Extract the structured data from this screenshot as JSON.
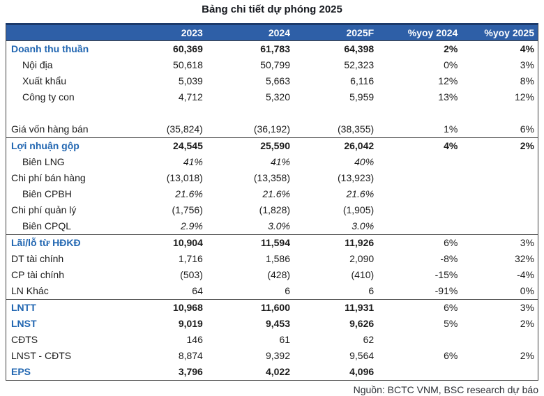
{
  "title": "Bảng chi tiết dự phóng 2025",
  "source": "Nguồn: BCTC VNM, BSC research dự báo",
  "colors": {
    "header_bg": "#2e5fa7",
    "header_top_border": "#1c3a6b",
    "accent_text": "#2166b1",
    "divider": "#4f4f4f",
    "header_text": "#ffffff"
  },
  "table": {
    "columns": [
      "",
      "2023",
      "2024",
      "2025F",
      "%yoy 2024",
      "%yoy 2025"
    ],
    "rows": [
      {
        "label": "Doanh thu thuần",
        "values": [
          "60,369",
          "61,783",
          "64,398",
          "2%",
          "4%"
        ],
        "style": "accent",
        "pct_bold": true
      },
      {
        "label": "Nội địa",
        "values": [
          "50,618",
          "50,799",
          "52,323",
          "0%",
          "3%"
        ],
        "style": "indent"
      },
      {
        "label": "Xuất khẩu",
        "values": [
          "5,039",
          "5,663",
          "6,116",
          "12%",
          "8%"
        ],
        "style": "indent"
      },
      {
        "label": "Công ty con",
        "values": [
          "4,712",
          "5,320",
          "5,959",
          "13%",
          "12%"
        ],
        "style": "indent"
      },
      {
        "label": "",
        "values": [
          "",
          "",
          "",
          "",
          ""
        ],
        "style": "empty"
      },
      {
        "label": "Giá vốn hàng bán",
        "values": [
          "(35,824)",
          "(36,192)",
          "(38,355)",
          "1%",
          "6%"
        ],
        "style": "normal"
      },
      {
        "label": "Lợi nhuận gộp",
        "values": [
          "24,545",
          "25,590",
          "26,042",
          "4%",
          "2%"
        ],
        "style": "accent",
        "pct_bold": true,
        "divider_top": true
      },
      {
        "label": "Biên LNG",
        "values": [
          "41%",
          "41%",
          "40%",
          "",
          ""
        ],
        "style": "indent-italic"
      },
      {
        "label": "Chi phí bán hàng",
        "values": [
          "(13,018)",
          "(13,358)",
          "(13,923)",
          "",
          ""
        ],
        "style": "normal"
      },
      {
        "label": "Biên CPBH",
        "values": [
          "21.6%",
          "21.6%",
          "21.6%",
          "",
          ""
        ],
        "style": "indent-italic"
      },
      {
        "label": "Chi phí quản lý",
        "values": [
          "(1,756)",
          "(1,828)",
          "(1,905)",
          "",
          ""
        ],
        "style": "normal"
      },
      {
        "label": "Biên CPQL",
        "values": [
          "2.9%",
          "3.0%",
          "3.0%",
          "",
          ""
        ],
        "style": "indent-italic"
      },
      {
        "label": "Lãi/lỗ từ HĐKĐ",
        "values": [
          "10,904",
          "11,594",
          "11,926",
          "6%",
          "3%"
        ],
        "style": "accent",
        "divider_top": true
      },
      {
        "label": "DT tài chính",
        "values": [
          "1,716",
          "1,586",
          "2,090",
          "-8%",
          "32%"
        ],
        "style": "normal"
      },
      {
        "label": "CP tài chính",
        "values": [
          "(503)",
          "(428)",
          "(410)",
          "-15%",
          "-4%"
        ],
        "style": "normal"
      },
      {
        "label": "LN Khác",
        "values": [
          "64",
          "6",
          "6",
          "-91%",
          "0%"
        ],
        "style": "normal"
      },
      {
        "label": "LNTT",
        "values": [
          "10,968",
          "11,600",
          "11,931",
          "6%",
          "3%"
        ],
        "style": "accent",
        "divider_top": true
      },
      {
        "label": "LNST",
        "values": [
          "9,019",
          "9,453",
          "9,626",
          "5%",
          "2%"
        ],
        "style": "accent"
      },
      {
        "label": "CĐTS",
        "values": [
          "146",
          "61",
          "62",
          "",
          ""
        ],
        "style": "normal"
      },
      {
        "label": "LNST - CĐTS",
        "values": [
          "8,874",
          "9,392",
          "9,564",
          "6%",
          "2%"
        ],
        "style": "normal"
      },
      {
        "label": "EPS",
        "values": [
          "3,796",
          "4,022",
          "4,096",
          "",
          ""
        ],
        "style": "accent"
      }
    ]
  }
}
